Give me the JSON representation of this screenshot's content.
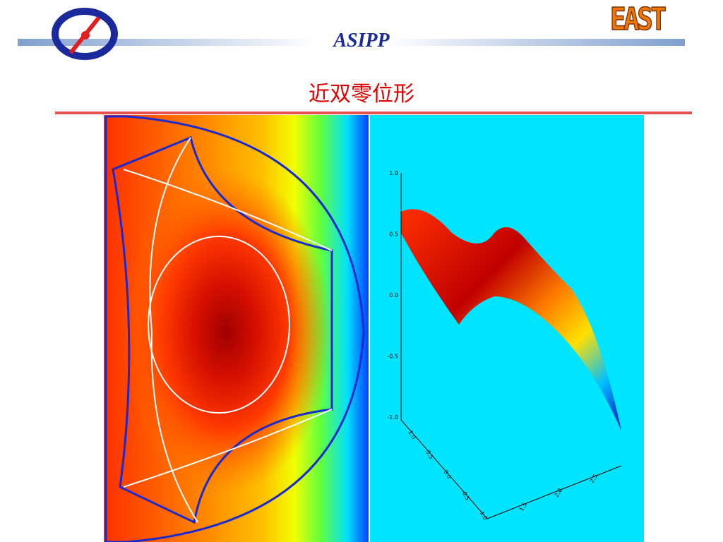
{
  "header": {
    "org": "ASIPP",
    "title": "近双零位形",
    "logo_text": "EAST"
  },
  "surface_plot": {
    "z_ticks": [
      "1.0",
      "0.5",
      "0.0",
      "-0.5",
      "-1.0"
    ],
    "y_ticks": [
      "1.0",
      "0.5",
      "0.0",
      "-0.5",
      "-1.0"
    ],
    "x_ticks": [
      "1.5",
      "2.0",
      "2.5"
    ]
  }
}
